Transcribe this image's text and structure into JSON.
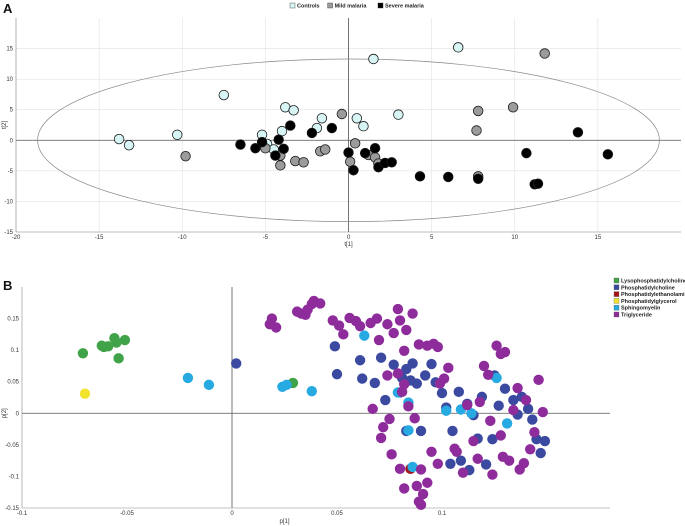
{
  "chart_data": [
    {
      "panel": "A",
      "type": "scatter",
      "xlabel": "t[1]",
      "ylabel": "t[2]",
      "xlim": [
        -20,
        20
      ],
      "ylim": [
        -15,
        20
      ],
      "xticks": [
        -20,
        -15,
        -10,
        -5,
        0,
        5,
        10,
        15
      ],
      "yticks": [
        -15,
        -10,
        -5,
        0,
        5,
        10,
        15
      ],
      "legend_position": "top-center",
      "ellipse": {
        "cx": 0,
        "cy": 0,
        "rx": 18.7,
        "ry": 13.3
      },
      "series": [
        {
          "name": "Controls",
          "color": "#d8f5f5",
          "points": [
            [
              -13.8,
              0.2
            ],
            [
              -13.2,
              -0.8
            ],
            [
              -10.3,
              0.9
            ],
            [
              -7.5,
              7.4
            ],
            [
              -5.2,
              0.9
            ],
            [
              -4.9,
              -0.6
            ],
            [
              -3.8,
              5.4
            ],
            [
              -3.3,
              4.9
            ],
            [
              -1.9,
              2.0
            ],
            [
              -1.6,
              3.6
            ],
            [
              0.5,
              3.6
            ],
            [
              0.9,
              2.3
            ],
            [
              1.5,
              13.3
            ],
            [
              3.0,
              4.2
            ],
            [
              6.6,
              15.2
            ],
            [
              -4.5,
              -1.5
            ],
            [
              -4.0,
              1.5
            ]
          ]
        },
        {
          "name": "Mild malaria",
          "color": "#9b9b9b",
          "points": [
            [
              -9.8,
              -2.6
            ],
            [
              -5.0,
              -1.3
            ],
            [
              -4.1,
              -2.5
            ],
            [
              -4.1,
              -4.1
            ],
            [
              -3.2,
              -3.4
            ],
            [
              -2.7,
              -3.6
            ],
            [
              -1.7,
              -1.8
            ],
            [
              -1.4,
              -1.5
            ],
            [
              -0.4,
              4.3
            ],
            [
              0.1,
              -3.5
            ],
            [
              0.4,
              -0.5
            ],
            [
              1.2,
              -2.4
            ],
            [
              1.6,
              -2.8
            ],
            [
              1.8,
              -3.8
            ],
            [
              7.7,
              1.6
            ],
            [
              7.8,
              4.8
            ],
            [
              7.8,
              -5.9
            ],
            [
              9.9,
              5.4
            ],
            [
              11.8,
              14.2
            ]
          ]
        },
        {
          "name": "Severe malaria",
          "color": "#000000",
          "points": [
            [
              -6.5,
              -0.7
            ],
            [
              -5.6,
              -1.3
            ],
            [
              -5.2,
              -0.3
            ],
            [
              -4.4,
              -2.5
            ],
            [
              -4.2,
              0.1
            ],
            [
              -3.9,
              -1.4
            ],
            [
              -3.5,
              2.4
            ],
            [
              -2.2,
              1.2
            ],
            [
              -1.0,
              2.0
            ],
            [
              0.0,
              -2.0
            ],
            [
              0.3,
              -4.9
            ],
            [
              1.0,
              -2.1
            ],
            [
              1.6,
              -1.3
            ],
            [
              1.8,
              -4.4
            ],
            [
              2.2,
              -3.7
            ],
            [
              2.6,
              -3.6
            ],
            [
              4.3,
              -5.9
            ],
            [
              6.0,
              -6.0
            ],
            [
              7.8,
              -6.3
            ],
            [
              10.7,
              -2.1
            ],
            [
              11.2,
              -7.2
            ],
            [
              11.4,
              -7.1
            ],
            [
              13.8,
              1.3
            ],
            [
              15.6,
              -2.3
            ]
          ]
        }
      ]
    },
    {
      "panel": "B",
      "type": "scatter",
      "xlabel": "p[1]",
      "ylabel": "p[2]",
      "xlim": [
        -0.1,
        0.18
      ],
      "ylim": [
        -0.15,
        0.2
      ],
      "xticks": [
        -0.1,
        -0.05,
        0,
        0.05,
        0.1
      ],
      "xticklabels": [
        "-0.1",
        "-0.05",
        "0",
        "0.05",
        "0.1"
      ],
      "yticks": [
        -0.15,
        -0.1,
        -0.05,
        0,
        0.05,
        0.1,
        0.15
      ],
      "yticklabels": [
        "-0.15",
        "-0.1",
        "-0.05",
        "0",
        "0.05",
        "0.1",
        "0.15"
      ],
      "legend_position": "top-right",
      "series": [
        {
          "name": "Lysophosphatidylcholine",
          "color": "#41a349",
          "points": [
            [
              -0.071,
              0.095
            ],
            [
              -0.062,
              0.107
            ],
            [
              -0.061,
              0.105
            ],
            [
              -0.059,
              0.106
            ],
            [
              -0.056,
              0.119
            ],
            [
              -0.055,
              0.112
            ],
            [
              -0.054,
              0.087
            ],
            [
              -0.051,
              0.116
            ],
            [
              0.029,
              0.048
            ]
          ]
        },
        {
          "name": "Phosphatidylcholine",
          "color": "#3b4aa0",
          "points": [
            [
              0.002,
              0.079
            ],
            [
              0.049,
              0.106
            ],
            [
              0.05,
              0.062
            ],
            [
              0.061,
              0.084
            ],
            [
              0.062,
              0.055
            ],
            [
              0.068,
              0.048
            ],
            [
              0.071,
              0.088
            ],
            [
              0.073,
              0.021
            ],
            [
              0.077,
              0.077
            ],
            [
              0.08,
              0.033
            ],
            [
              0.081,
              0.056
            ],
            [
              0.083,
              0.07
            ],
            [
              0.085,
              0.052
            ],
            [
              0.086,
              0.079
            ],
            [
              0.088,
              0.047
            ],
            [
              0.09,
              -0.028
            ],
            [
              0.092,
              0.06
            ],
            [
              0.095,
              0.078
            ],
            [
              0.097,
              0.049
            ],
            [
              0.1,
              0.032
            ],
            [
              0.102,
              0.009
            ],
            [
              0.105,
              -0.028
            ],
            [
              0.108,
              0.034
            ],
            [
              0.109,
              -0.075
            ],
            [
              0.112,
              0.015
            ],
            [
              0.115,
              -0.003
            ],
            [
              0.117,
              -0.04
            ],
            [
              0.119,
              0.026
            ],
            [
              0.121,
              -0.081
            ],
            [
              0.124,
              -0.041
            ],
            [
              0.125,
              0.06
            ],
            [
              0.127,
              0.012
            ],
            [
              0.13,
              0.039
            ],
            [
              0.134,
              0.021
            ],
            [
              0.136,
              -0.002
            ],
            [
              0.138,
              0.026
            ],
            [
              0.141,
              0.007
            ],
            [
              0.143,
              -0.01
            ],
            [
              0.145,
              -0.041
            ],
            [
              0.147,
              -0.063
            ],
            [
              0.149,
              -0.044
            ],
            [
              0.083,
              -0.028
            ],
            [
              0.104,
              -0.08
            ],
            [
              0.113,
              -0.09
            ]
          ]
        },
        {
          "name": "Phosphatidylethanolamine",
          "color": "#a4161a",
          "points": [
            [
              0.085,
              -0.088
            ]
          ]
        },
        {
          "name": "Phosphatidylglycerol",
          "color": "#f2e32e",
          "points": [
            [
              -0.07,
              0.031
            ]
          ]
        },
        {
          "name": "Sphingomyelin",
          "color": "#27a9e1",
          "points": [
            [
              -0.021,
              0.056
            ],
            [
              -0.011,
              0.045
            ],
            [
              0.024,
              0.042
            ],
            [
              0.026,
              0.045
            ],
            [
              0.038,
              0.035
            ],
            [
              0.063,
              0.123
            ],
            [
              0.079,
              0.033
            ],
            [
              0.084,
              0.017
            ],
            [
              0.084,
              -0.027
            ],
            [
              0.086,
              -0.085
            ],
            [
              0.102,
              0.004
            ],
            [
              0.109,
              0.006
            ],
            [
              0.114,
              0.0
            ],
            [
              0.126,
              0.056
            ],
            [
              0.131,
              -0.016
            ]
          ]
        },
        {
          "name": "Triglyceride",
          "color": "#8e2c9c",
          "points": [
            [
              0.018,
              0.141
            ],
            [
              0.019,
              0.15
            ],
            [
              0.021,
              0.136
            ],
            [
              0.031,
              0.161
            ],
            [
              0.033,
              0.158
            ],
            [
              0.035,
              0.156
            ],
            [
              0.036,
              0.164
            ],
            [
              0.038,
              0.173
            ],
            [
              0.039,
              0.178
            ],
            [
              0.042,
              0.174
            ],
            [
              0.048,
              0.147
            ],
            [
              0.051,
              0.139
            ],
            [
              0.053,
              0.125
            ],
            [
              0.056,
              0.151
            ],
            [
              0.059,
              0.146
            ],
            [
              0.061,
              0.138
            ],
            [
              0.066,
              0.143
            ],
            [
              0.069,
              0.15
            ],
            [
              0.07,
              0.116
            ],
            [
              0.074,
              0.141
            ],
            [
              0.077,
              0.127
            ],
            [
              0.079,
              0.165
            ],
            [
              0.08,
              0.147
            ],
            [
              0.082,
              0.099
            ],
            [
              0.083,
              0.132
            ],
            [
              0.086,
              0.158
            ],
            [
              0.089,
              0.109
            ],
            [
              0.093,
              0.107
            ],
            [
              0.096,
              0.11
            ],
            [
              0.098,
              0.105
            ],
            [
              0.067,
              0.007
            ],
            [
              0.074,
              0.06
            ],
            [
              0.075,
              -0.009
            ],
            [
              0.079,
              0.063
            ],
            [
              0.081,
              0.034
            ],
            [
              0.082,
              0.046
            ],
            [
              0.084,
              0.011
            ],
            [
              0.087,
              -0.008
            ],
            [
              0.071,
              -0.039
            ],
            [
              0.072,
              -0.022
            ],
            [
              0.076,
              -0.065
            ],
            [
              0.08,
              -0.088
            ],
            [
              0.082,
              -0.119
            ],
            [
              0.088,
              -0.115
            ],
            [
              0.09,
              -0.089
            ],
            [
              0.091,
              -0.128
            ],
            [
              0.093,
              -0.11
            ],
            [
              0.095,
              -0.061
            ],
            [
              0.098,
              -0.08
            ],
            [
              0.099,
              0.047
            ],
            [
              0.101,
              0.055
            ],
            [
              0.103,
              0.072
            ],
            [
              0.106,
              -0.056
            ],
            [
              0.107,
              -0.061
            ],
            [
              0.11,
              -0.094
            ],
            [
              0.112,
              0.013
            ],
            [
              0.115,
              -0.044
            ],
            [
              0.117,
              -0.072
            ],
            [
              0.118,
              0.018
            ],
            [
              0.12,
              0.075
            ],
            [
              0.122,
              0.061
            ],
            [
              0.123,
              -0.012
            ],
            [
              0.124,
              -0.097
            ],
            [
              0.126,
              0.107
            ],
            [
              0.128,
              -0.035
            ],
            [
              0.129,
              -0.069
            ],
            [
              0.132,
              -0.075
            ],
            [
              0.134,
              0.005
            ],
            [
              0.136,
              0.04
            ],
            [
              0.137,
              -0.089
            ],
            [
              0.139,
              -0.079
            ],
            [
              0.14,
              0.021
            ],
            [
              0.142,
              -0.057
            ],
            [
              0.144,
              -0.03
            ],
            [
              0.146,
              0.053
            ],
            [
              0.148,
              0.002
            ],
            [
              0.089,
              -0.14
            ],
            [
              0.09,
              -0.145
            ],
            [
              0.13,
              0.097
            ],
            [
              0.128,
              0.094
            ]
          ]
        }
      ]
    }
  ]
}
